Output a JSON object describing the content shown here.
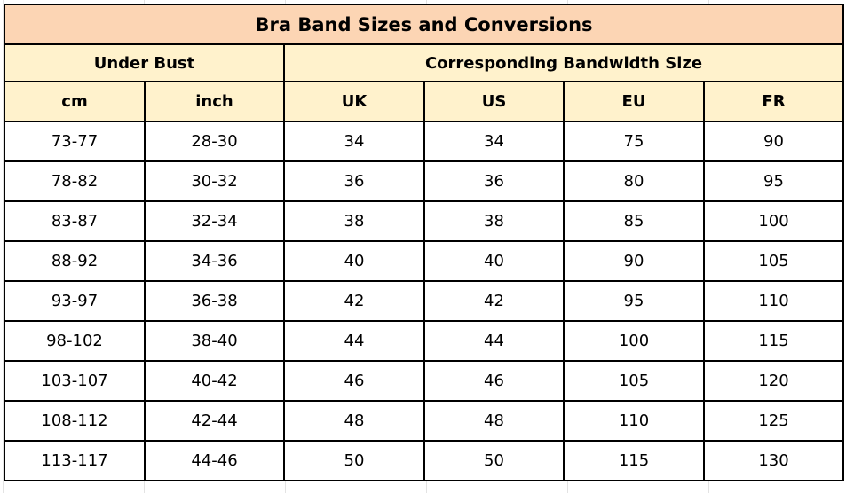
{
  "table": {
    "title": "Bra Band Sizes and Conversions",
    "groups": {
      "under_bust": "Under Bust",
      "bandwidth": "Corresponding Bandwidth Size"
    },
    "columns": [
      "cm",
      "inch",
      "UK",
      "US",
      "EU",
      "FR"
    ],
    "rows": [
      [
        "73-77",
        "28-30",
        "34",
        "34",
        "75",
        "90"
      ],
      [
        "78-82",
        "30-32",
        "36",
        "36",
        "80",
        "95"
      ],
      [
        "83-87",
        "32-34",
        "38",
        "38",
        "85",
        "100"
      ],
      [
        "88-92",
        "34-36",
        "40",
        "40",
        "90",
        "105"
      ],
      [
        "93-97",
        "36-38",
        "42",
        "42",
        "95",
        "110"
      ],
      [
        "98-102",
        "38-40",
        "44",
        "44",
        "100",
        "115"
      ],
      [
        "103-107",
        "40-42",
        "46",
        "46",
        "105",
        "120"
      ],
      [
        "108-112",
        "42-44",
        "48",
        "48",
        "110",
        "125"
      ],
      [
        "113-117",
        "44-46",
        "50",
        "50",
        "115",
        "130"
      ]
    ]
  },
  "colors": {
    "title_background": "#fcd5b4",
    "header_background": "#fff2cc",
    "border": "#000000"
  }
}
